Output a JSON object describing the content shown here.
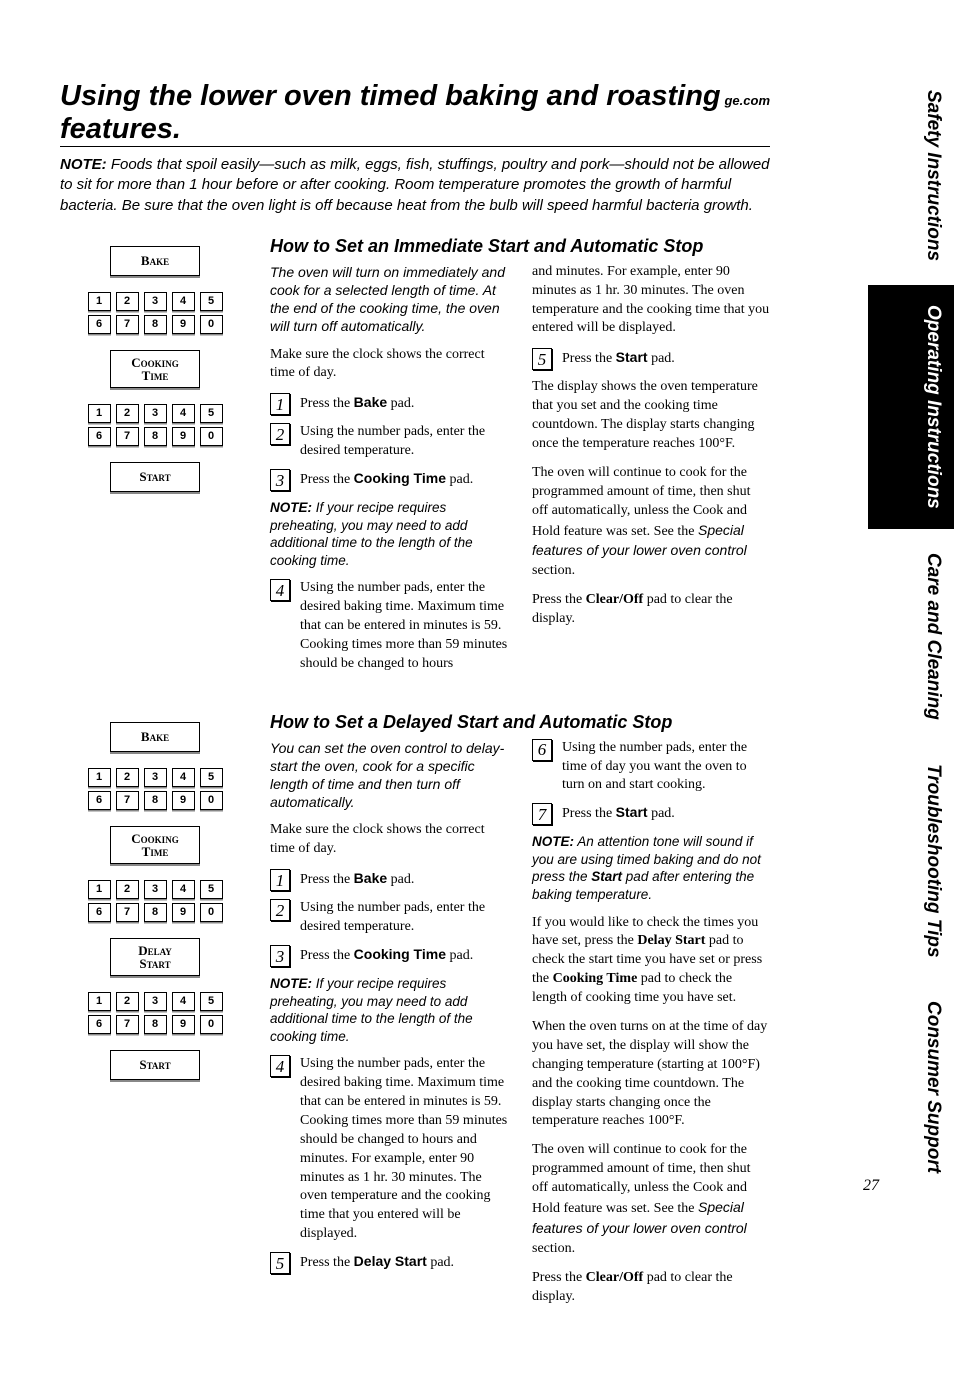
{
  "header": {
    "title": "Using the lower oven timed baking and roasting features.",
    "url": "ge.com"
  },
  "top_note_label": "NOTE:",
  "top_note": " Foods that spoil easily—such as milk, eggs, fish, stuffings, poultry and pork—should not be allowed to sit for more than 1 hour before or after cooking. Room temperature promotes the growth of harmful bacteria. Be sure that the oven light is off because heat from the bulb will speed harmful bacteria growth.",
  "keypad": {
    "row1": [
      "1",
      "2",
      "3",
      "4",
      "5"
    ],
    "row2": [
      "6",
      "7",
      "8",
      "9",
      "0"
    ]
  },
  "buttons": {
    "bake": "Bake",
    "cooking_time": "Cooking\nTime",
    "delay_start": "Delay\nStart",
    "start": "Start"
  },
  "section1": {
    "heading": "How to Set an Immediate Start and Automatic Stop",
    "intro": "The oven will turn on immediately and cook for a selected length of time. At the end of the cooking time, the oven will turn off automatically.",
    "lead": "Make sure the clock shows the correct time of day.",
    "steps": {
      "s1_pre": "Press the ",
      "s1_b": "Bake",
      "s1_post": " pad.",
      "s2": "Using the number pads, enter the desired temperature.",
      "s3_pre": "Press the ",
      "s3_b": "Cooking Time",
      "s3_post": " pad.",
      "s4": "Using the number pads, enter the desired baking time. Maximum time that can be entered in minutes is 59. Cooking times more than 59 minutes should be changed to hours",
      "s4_cont": "and minutes. For example, enter 90 minutes as 1 hr. 30 minutes. The oven temperature and the cooking time that you entered will be displayed.",
      "s5_pre": "Press the ",
      "s5_b": "Start",
      "s5_post": " pad."
    },
    "mid_note_label": "NOTE:",
    "mid_note": " If your recipe requires preheating, you may need to add additional time to the length of the cooking time.",
    "after1": "The display shows the oven temperature that you set and the cooking time countdown. The display starts changing once the temperature reaches 100°F.",
    "after2_a": "The oven will continue to cook for the programmed amount of time, then shut off automatically, unless the Cook and Hold feature was set. See the ",
    "after2_em": "Special features of your lower oven control",
    "after2_b": " section.",
    "after3_a": "Press the ",
    "after3_b": "Clear/Off",
    "after3_c": " pad to clear the display."
  },
  "section2": {
    "heading": "How to Set a Delayed Start and Automatic Stop",
    "intro": "You can set the oven control to delay-start the oven, cook for a specific length of time and then turn off automatically.",
    "lead": "Make sure the clock shows the correct time of day.",
    "steps": {
      "s1_pre": "Press the ",
      "s1_b": "Bake",
      "s1_post": " pad.",
      "s2": "Using the number pads, enter the desired temperature.",
      "s3_pre": "Press the ",
      "s3_b": "Cooking Time",
      "s3_post": " pad.",
      "s4": "Using the number pads, enter the desired baking time. Maximum time that can be entered in minutes is 59. Cooking times more than 59 minutes should be changed to hours and minutes. For example, enter 90 minutes as 1 hr. 30 minutes. The oven temperature and the cooking time that you entered will be displayed.",
      "s5_pre": "Press the ",
      "s5_b": "Delay Start",
      "s5_post": " pad.",
      "s6": "Using the number pads, enter the time of day you want the oven to turn on and start cooking.",
      "s7_pre": "Press the ",
      "s7_b": "Start",
      "s7_post": " pad."
    },
    "mid_note_label": "NOTE:",
    "mid_note": " If your recipe requires preheating, you may need to add additional time to the length of the cooking time.",
    "right_note_label": "NOTE:",
    "right_note_a": " An attention tone will sound if you are using timed baking and do not press the ",
    "right_note_b": "Start",
    "right_note_c": " pad after entering the baking temperature.",
    "after1_a": "If you would like to check the times you have set, press the ",
    "after1_b": "Delay Start",
    "after1_c": " pad to check the start time you have set or press the ",
    "after1_d": "Cooking Time",
    "after1_e": " pad to check the length of cooking time you have set.",
    "after2": "When the oven turns on at the time of day you have set, the display will show the changing temperature (starting at 100°F) and the cooking time countdown. The display starts changing once the temperature reaches 100°F.",
    "after3_a": "The oven will continue to cook for the programmed amount of time, then shut off automatically, unless the Cook and Hold feature was set. See the ",
    "after3_em": "Special features of your lower oven control",
    "after3_b": " section.",
    "after4_a": "Press the ",
    "after4_b": "Clear/Off",
    "after4_c": " pad to clear the display."
  },
  "tabs": [
    "Safety Instructions",
    "Operating Instructions",
    "Care and Cleaning",
    "Troubleshooting Tips",
    "Consumer Support"
  ],
  "page_number": "27"
}
